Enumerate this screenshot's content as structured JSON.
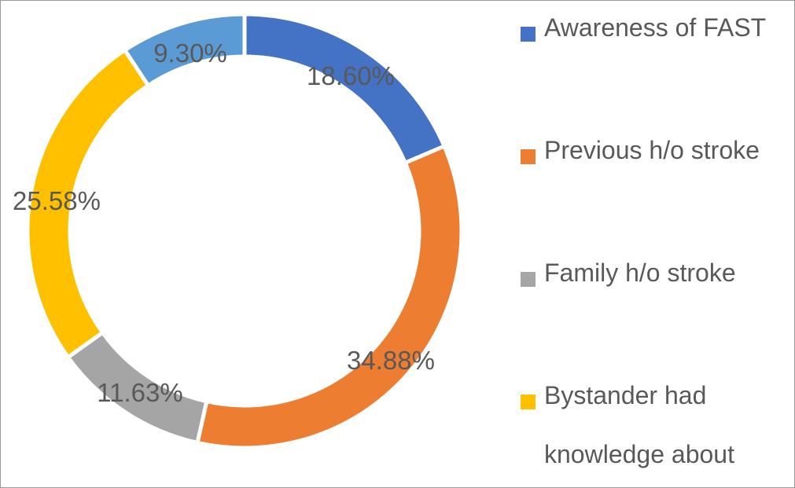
{
  "chart_data": {
    "type": "pie",
    "style": "donut",
    "title": "",
    "legend_position": "right",
    "slices": [
      {
        "label": "Awareness of FAST",
        "value": 18.6,
        "display": "18.60%",
        "color": "#4472C4"
      },
      {
        "label": "Previous h/o stroke",
        "value": 34.88,
        "display": "34.88%",
        "color": "#ED7D31"
      },
      {
        "label": "Family h/o stroke",
        "value": 11.63,
        "display": "11.63%",
        "color": "#A5A5A5"
      },
      {
        "label": "Bystander had knowledge about",
        "value": 25.58,
        "display": "25.58%",
        "color": "#FFC000"
      },
      {
        "label": "",
        "value": 9.3,
        "display": "9.30%",
        "color": "#5B9BD5"
      }
    ]
  },
  "legend": {
    "items": [
      {
        "label": "Awareness of FAST",
        "color": "#4472C4"
      },
      {
        "label": "Previous h/o stroke",
        "color": "#ED7D31"
      },
      {
        "label": "Family h/o stroke",
        "color": "#A5A5A5"
      },
      {
        "label": "Bystander had knowledge about",
        "color": "#FFC000"
      }
    ]
  }
}
